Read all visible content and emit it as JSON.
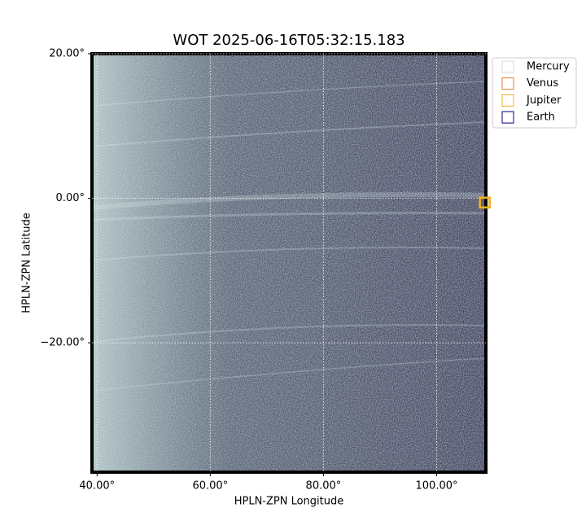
{
  "chart_data": {
    "type": "scatter",
    "title": "WOT 2025-06-16T05:32:15.183",
    "x_label": "HPLN-ZPN Longitude",
    "y_label": "HPLN-ZPN Latitude",
    "xlim": [
      39.1,
      108.7
    ],
    "ylim": [
      -37.9,
      20
    ],
    "xticks": [
      {
        "value": 40,
        "label": "40.00°"
      },
      {
        "value": 60,
        "label": "60.00°"
      },
      {
        "value": 80,
        "label": "80.00°"
      },
      {
        "value": 100,
        "label": "100.00°"
      }
    ],
    "yticks": [
      {
        "value": 20,
        "label": "20.00°"
      },
      {
        "value": 0,
        "label": "0.00°"
      },
      {
        "value": -20,
        "label": "−20.00°"
      }
    ],
    "grid": true,
    "legend": "upper right outside",
    "series": [
      {
        "name": "Mercury",
        "color": "#d8d8d8"
      },
      {
        "name": "Venus",
        "color": "#e07b39",
        "x": [
          108.5
        ],
        "y": [
          -0.6
        ]
      },
      {
        "name": "Jupiter",
        "color": "#f0b020",
        "x": [
          108.5
        ],
        "y": [
          -0.6
        ]
      },
      {
        "name": "Earth",
        "color": "#000080"
      }
    ]
  }
}
